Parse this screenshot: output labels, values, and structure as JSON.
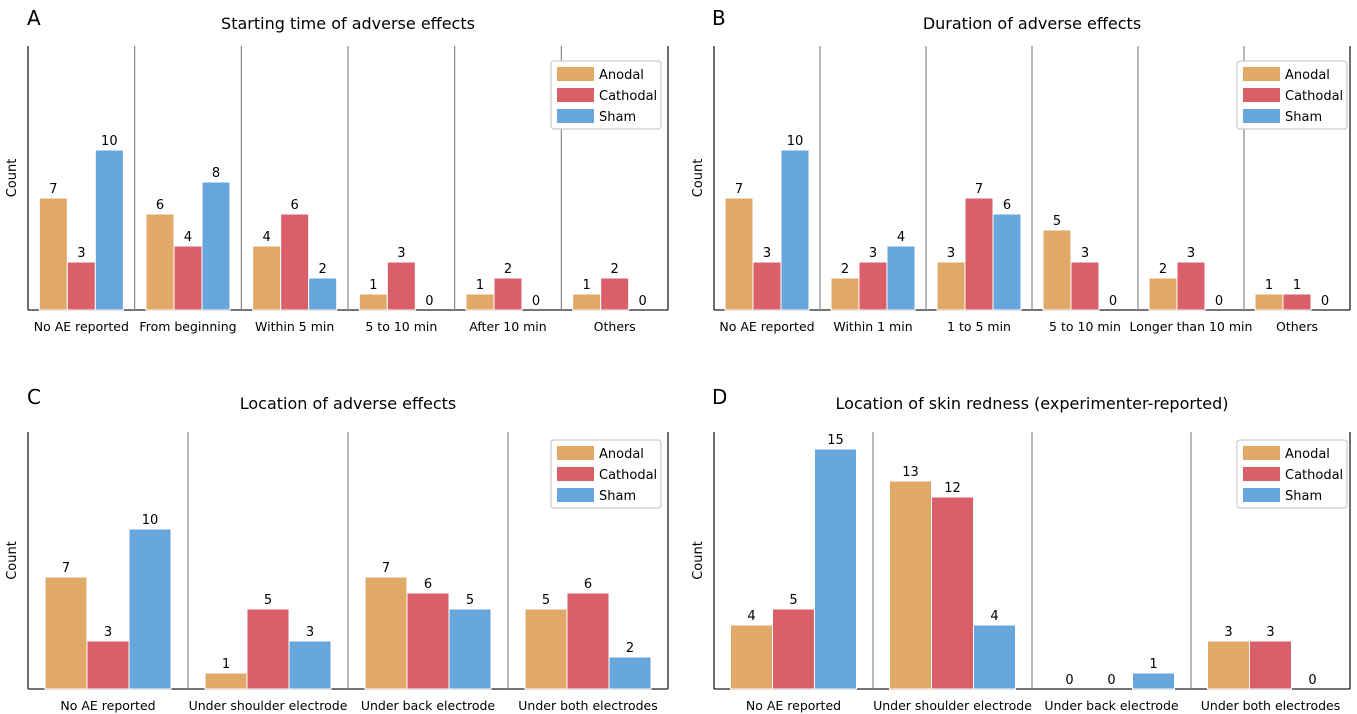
{
  "series_colors": {
    "Anodal": "#E1A968",
    "Cathodal": "#D95F68",
    "Sham": "#67A6DC"
  },
  "chart_data": [
    {
      "type": "bar",
      "letter": "A",
      "title": "Starting time of adverse effects",
      "xlabel": "",
      "ylabel": "Count",
      "ylim": [
        0,
        16
      ],
      "grid": false,
      "legend": "top-right",
      "categories": [
        "No AE reported",
        "From beginning",
        "Within 5 min",
        "5 to 10 min",
        "After 10 min",
        "Others"
      ],
      "series": [
        {
          "name": "Anodal",
          "values": [
            7,
            6,
            4,
            1,
            1,
            1
          ]
        },
        {
          "name": "Cathodal",
          "values": [
            3,
            4,
            6,
            3,
            2,
            2
          ]
        },
        {
          "name": "Sham",
          "values": [
            10,
            8,
            2,
            0,
            0,
            0
          ]
        }
      ]
    },
    {
      "type": "bar",
      "letter": "B",
      "title": "Duration of adverse effects",
      "xlabel": "",
      "ylabel": "Count",
      "ylim": [
        0,
        16
      ],
      "grid": false,
      "legend": "top-right",
      "categories": [
        "No AE reported",
        "Within 1 min",
        "1 to 5 min",
        "5 to 10 min",
        "Longer than 10 min",
        "Others"
      ],
      "series": [
        {
          "name": "Anodal",
          "values": [
            7,
            2,
            3,
            5,
            2,
            1
          ]
        },
        {
          "name": "Cathodal",
          "values": [
            3,
            3,
            7,
            3,
            3,
            1
          ]
        },
        {
          "name": "Sham",
          "values": [
            10,
            4,
            6,
            0,
            0,
            0
          ]
        }
      ]
    },
    {
      "type": "bar",
      "letter": "C",
      "title": "Location of adverse effects",
      "xlabel": "",
      "ylabel": "Count",
      "ylim": [
        0,
        16
      ],
      "grid": false,
      "legend": "top-right",
      "categories": [
        "No AE reported",
        "Under shoulder electrode",
        "Under back electrode",
        "Under both electrodes"
      ],
      "series": [
        {
          "name": "Anodal",
          "values": [
            7,
            1,
            7,
            5
          ]
        },
        {
          "name": "Cathodal",
          "values": [
            3,
            5,
            6,
            6
          ]
        },
        {
          "name": "Sham",
          "values": [
            10,
            3,
            5,
            2
          ]
        }
      ]
    },
    {
      "type": "bar",
      "letter": "D",
      "title": "Location of skin redness (experimenter-reported)",
      "xlabel": "",
      "ylabel": "Count",
      "ylim": [
        0,
        16
      ],
      "grid": false,
      "legend": "top-right",
      "categories": [
        "No AE reported",
        "Under shoulder electrode",
        "Under back electrode",
        "Under both electrodes"
      ],
      "series": [
        {
          "name": "Anodal",
          "values": [
            4,
            13,
            0,
            3
          ]
        },
        {
          "name": "Cathodal",
          "values": [
            5,
            12,
            0,
            3
          ]
        },
        {
          "name": "Sham",
          "values": [
            15,
            4,
            1,
            0
          ]
        }
      ]
    }
  ]
}
